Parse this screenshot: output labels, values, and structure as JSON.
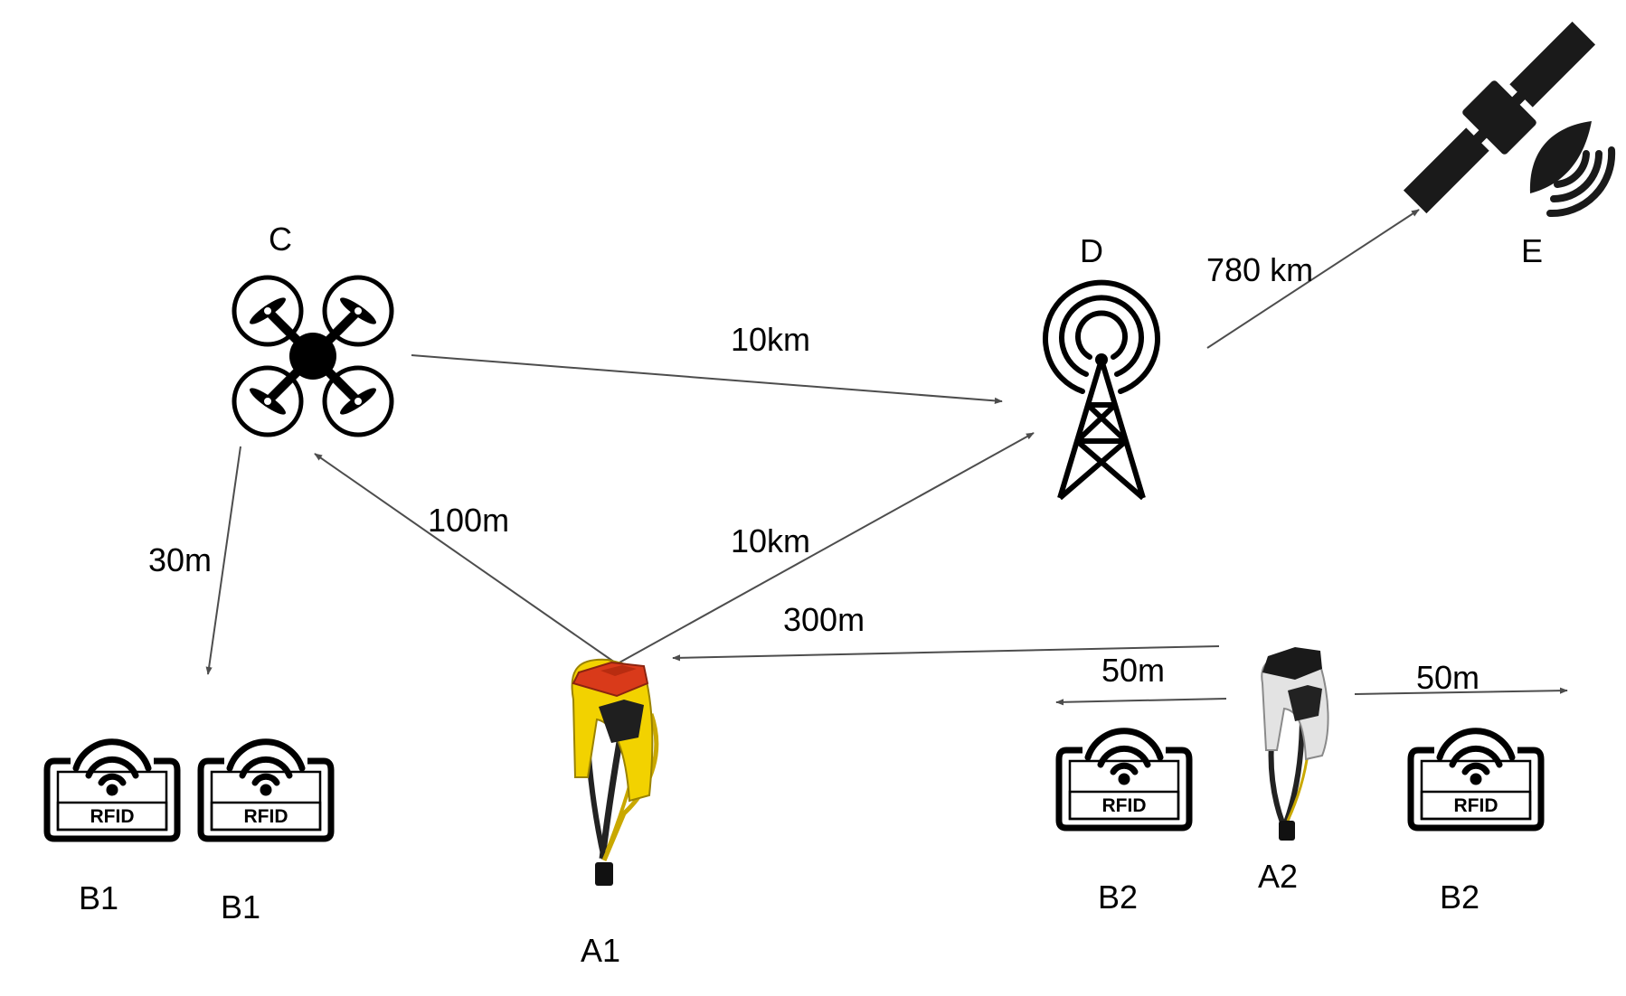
{
  "nodes": {
    "a1": "A1",
    "a2": "A2",
    "b1_left": "B1",
    "b1_right": "B1",
    "b2_left": "B2",
    "b2_right": "B2",
    "c": "C",
    "d": "D",
    "e": "E"
  },
  "links": {
    "c_to_d": "10km",
    "a1_to_d": "10km",
    "a1_to_c": "100m",
    "c_to_b1": "30m",
    "a2_to_a1": "300m",
    "a2_to_b2_left": "50m",
    "a2_to_b2_right": "50m",
    "d_to_e": "780 km"
  },
  "rfid_tag_text": "RFID",
  "icons": {
    "drone": "drone-icon",
    "tower": "radio-tower-icon",
    "satellite": "satellite-icon",
    "reader_a1": "rfid-reader-yellow-icon",
    "reader_a2": "rfid-reader-white-icon",
    "rfid_tag": "rfid-tag-icon"
  },
  "colors": {
    "arrow": "#4d4d4d",
    "reader_a1_body": "#f2d200",
    "reader_a1_head": "#d93a1a",
    "reader_a2_body": "#e3e3e3",
    "reader_a2_head": "#1a1a1a"
  }
}
